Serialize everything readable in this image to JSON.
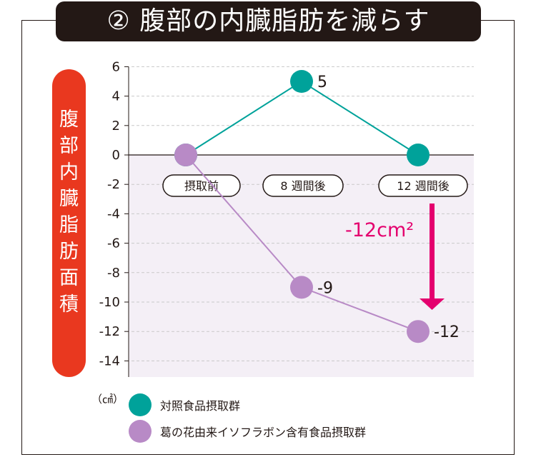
{
  "title": "② 腹部の内臓脂肪を減らす",
  "chart_data": {
    "type": "line",
    "title": "② 腹部の内臓脂肪を減らす",
    "ylabel": "腹部内臓脂肪面積",
    "unit": "（㎠）",
    "categories": [
      "摂取前",
      "8 週間後",
      "12 週間後"
    ],
    "ylim": [
      -15,
      6
    ],
    "yticks": [
      6,
      4,
      2,
      0,
      -2,
      -4,
      -6,
      -8,
      -10,
      -12,
      -14
    ],
    "grid": true,
    "legend_placement": "bottom",
    "series": [
      {
        "name": "対照食品摂取群",
        "values": [
          0,
          5,
          0
        ],
        "labels": [
          "",
          "5",
          ""
        ],
        "color": "#00a29a"
      },
      {
        "name": "葛の花由来イソフラボン含有食品摂取群",
        "values": [
          0,
          -9,
          -12
        ],
        "labels": [
          "",
          "-9",
          "-12"
        ],
        "color": "#b88ac6"
      }
    ],
    "annotation": {
      "text": "-12cm²",
      "color": "#e4006e"
    },
    "negative_region_color": "#f4eff6"
  }
}
